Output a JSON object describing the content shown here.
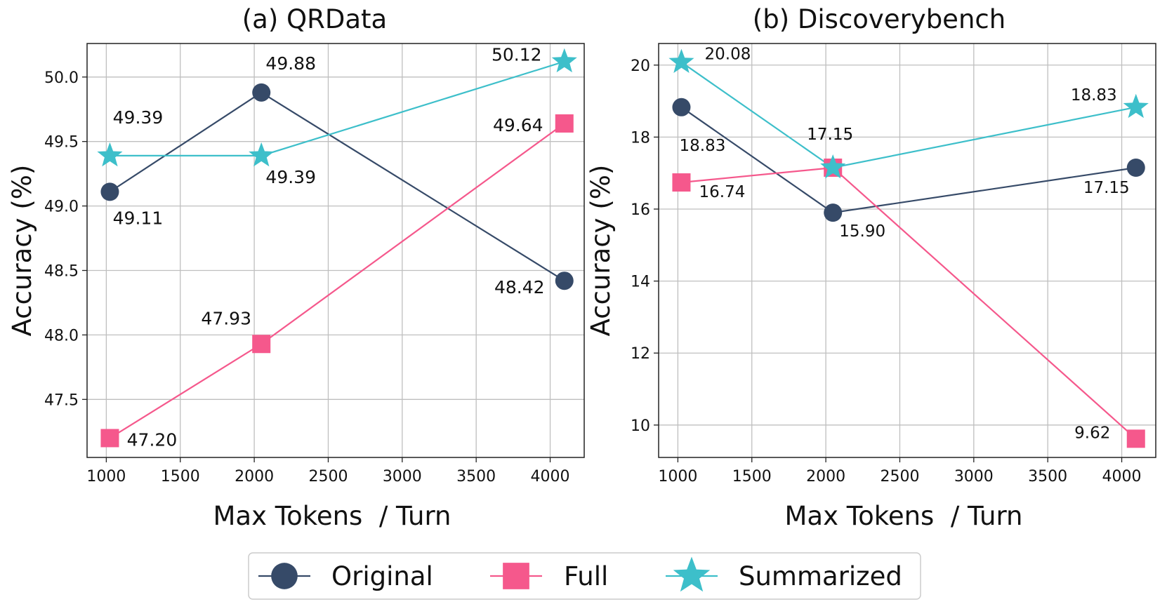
{
  "colors": {
    "original": "#364a68",
    "full": "#f5588c",
    "summarized": "#3dbfca",
    "grid": "#bfbfbf",
    "axis": "#222222"
  },
  "legend": {
    "placement": "bottom-center",
    "entries": [
      {
        "label": "Original",
        "marker": "circle",
        "color": "#364a68"
      },
      {
        "label": "Full",
        "marker": "square",
        "color": "#f5588c"
      },
      {
        "label": "Summarized",
        "marker": "star",
        "color": "#3dbfca"
      }
    ]
  },
  "chart_data": [
    {
      "type": "line",
      "title": "(a) QRData",
      "xlabel": "Max Tokens  / Turn",
      "ylabel": "Accuracy (%)",
      "xlim": [
        870,
        4230
      ],
      "ylim": [
        47.05,
        50.26
      ],
      "xticks": [
        1000,
        1500,
        2000,
        2500,
        3000,
        3500,
        4000
      ],
      "yticks": [
        47.5,
        48.0,
        48.5,
        49.0,
        49.5,
        50.0
      ],
      "ytick_labels": [
        "47.5",
        "48.0",
        "48.5",
        "49.0",
        "49.5",
        "50.0"
      ],
      "grid": true,
      "x": [
        1024,
        2048,
        4096
      ],
      "series": [
        {
          "name": "Original",
          "marker": "circle",
          "values": [
            49.11,
            49.88,
            48.42
          ],
          "labels": [
            "49.11",
            "49.88",
            "48.42"
          ]
        },
        {
          "name": "Full",
          "marker": "square",
          "values": [
            47.2,
            47.93,
            49.64
          ],
          "labels": [
            "47.20",
            "47.93",
            "49.64"
          ]
        },
        {
          "name": "Summarized",
          "marker": "star",
          "values": [
            49.39,
            49.39,
            50.12
          ],
          "labels": [
            "49.39",
            "49.39",
            "50.12"
          ]
        }
      ]
    },
    {
      "type": "line",
      "title": "(b) Discoverybench",
      "xlabel": "Max Tokens  / Turn",
      "ylabel": "Accuracy (%)",
      "xlim": [
        870,
        4230
      ],
      "ylim": [
        9.1,
        20.6
      ],
      "xticks": [
        1000,
        1500,
        2000,
        2500,
        3000,
        3500,
        4000
      ],
      "yticks": [
        10,
        12,
        14,
        16,
        18,
        20
      ],
      "ytick_labels": [
        "10",
        "12",
        "14",
        "16",
        "18",
        "20"
      ],
      "grid": true,
      "x": [
        1024,
        2048,
        4096
      ],
      "series": [
        {
          "name": "Original",
          "marker": "circle",
          "values": [
            18.83,
            15.9,
            17.15
          ],
          "labels": [
            "18.83",
            "15.90",
            "17.15"
          ]
        },
        {
          "name": "Full",
          "marker": "square",
          "values": [
            16.74,
            17.15,
            9.62
          ],
          "labels": [
            "16.74",
            "17.15",
            "9.62"
          ]
        },
        {
          "name": "Summarized",
          "marker": "star",
          "values": [
            20.08,
            17.15,
            18.83
          ],
          "labels": [
            "20.08",
            "17.15",
            "18.83"
          ]
        }
      ]
    }
  ]
}
